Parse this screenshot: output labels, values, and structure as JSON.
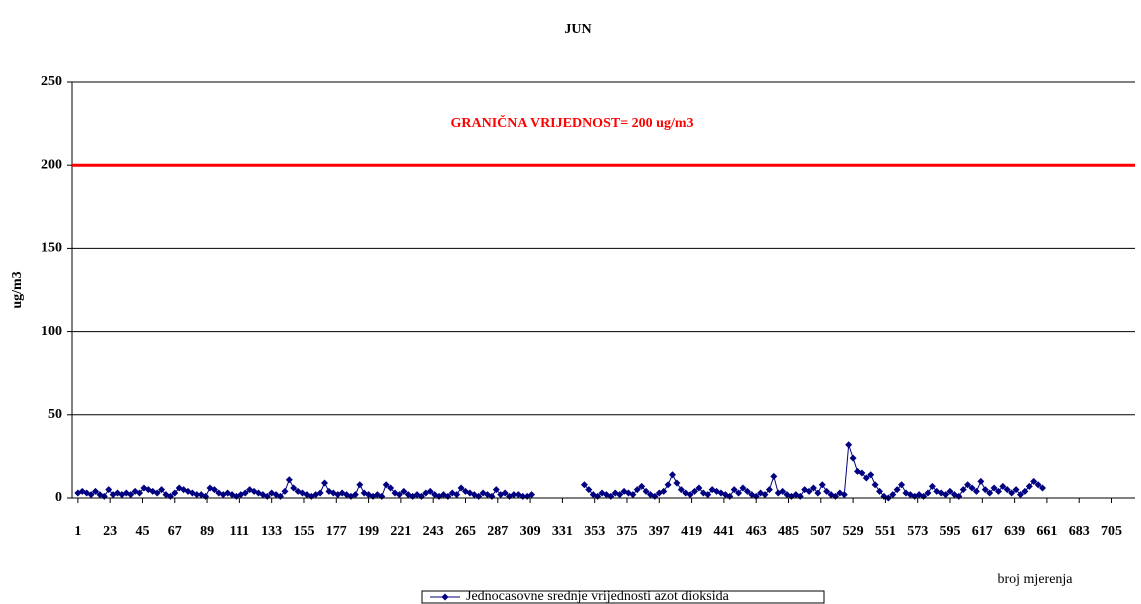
{
  "chart_data": {
    "type": "line",
    "title": "JUN",
    "y_label": "ug/m3",
    "x_label": "broj mjerenja",
    "threshold": {
      "value": 200,
      "label": "GRANIČNA VRIJEDNOST= 200 ug/m3",
      "color": "#ff0000"
    },
    "xlim": [
      -3,
      721
    ],
    "xticks": [
      1,
      23,
      45,
      67,
      89,
      111,
      133,
      155,
      177,
      199,
      221,
      243,
      265,
      287,
      309,
      331,
      353,
      375,
      397,
      419,
      441,
      463,
      485,
      507,
      529,
      551,
      573,
      595,
      617,
      639,
      661,
      683,
      705
    ],
    "ylim": [
      0,
      250
    ],
    "yticks": [
      0,
      50,
      100,
      150,
      200,
      250
    ],
    "grid": true,
    "x": [
      1,
      4,
      7,
      10,
      13,
      16,
      19,
      22,
      25,
      28,
      31,
      34,
      37,
      40,
      43,
      46,
      49,
      52,
      55,
      58,
      61,
      64,
      67,
      70,
      73,
      76,
      79,
      82,
      85,
      88,
      91,
      94,
      97,
      100,
      103,
      106,
      109,
      112,
      115,
      118,
      121,
      124,
      127,
      130,
      133,
      136,
      139,
      142,
      145,
      148,
      151,
      154,
      157,
      160,
      163,
      166,
      169,
      172,
      175,
      178,
      181,
      184,
      187,
      190,
      193,
      196,
      199,
      202,
      205,
      208,
      211,
      214,
      217,
      220,
      223,
      226,
      229,
      232,
      235,
      238,
      241,
      244,
      247,
      250,
      253,
      256,
      259,
      262,
      265,
      268,
      271,
      274,
      277,
      280,
      283,
      286,
      289,
      292,
      295,
      298,
      301,
      304,
      307,
      310,
      328,
      346,
      349,
      352,
      355,
      358,
      361,
      364,
      367,
      370,
      373,
      376,
      379,
      382,
      385,
      388,
      391,
      394,
      397,
      400,
      403,
      406,
      409,
      412,
      415,
      418,
      421,
      424,
      427,
      430,
      433,
      436,
      439,
      442,
      445,
      448,
      451,
      454,
      457,
      460,
      463,
      466,
      469,
      472,
      475,
      478,
      481,
      484,
      487,
      490,
      493,
      496,
      499,
      502,
      505,
      508,
      511,
      514,
      517,
      520,
      523,
      526,
      529,
      532,
      535,
      538,
      541,
      544,
      547,
      550,
      553,
      556,
      559,
      562,
      565,
      568,
      571,
      574,
      577,
      580,
      583,
      586,
      589,
      592,
      595,
      598,
      601,
      604,
      607,
      610,
      613,
      616,
      619,
      622,
      625,
      628,
      631,
      634,
      637,
      640,
      643,
      646,
      649,
      652,
      655,
      658
    ],
    "series": [
      {
        "name": "Jednocasovne srednje vrijednosti azot dioksida",
        "color": "#000080",
        "values": [
          3,
          4,
          3,
          2,
          4,
          2,
          1,
          5,
          2,
          3,
          2,
          3,
          2,
          4,
          3,
          6,
          5,
          4,
          3,
          5,
          2,
          1,
          3,
          6,
          5,
          4,
          3,
          2,
          2,
          1,
          6,
          5,
          3,
          2,
          3,
          2,
          1,
          2,
          3,
          5,
          4,
          3,
          2,
          1,
          3,
          2,
          1,
          4,
          11,
          6,
          4,
          3,
          2,
          1,
          2,
          3,
          9,
          4,
          3,
          2,
          3,
          2,
          1,
          2,
          8,
          3,
          2,
          1,
          2,
          1,
          8,
          6,
          3,
          2,
          4,
          2,
          1,
          2,
          1,
          3,
          4,
          2,
          1,
          2,
          1,
          3,
          2,
          6,
          4,
          3,
          2,
          1,
          3,
          2,
          1,
          5,
          2,
          3,
          1,
          2,
          2,
          1,
          1,
          2,
          null,
          8,
          5,
          2,
          1,
          3,
          2,
          1,
          3,
          2,
          4,
          3,
          2,
          5,
          7,
          4,
          2,
          1,
          3,
          4,
          8,
          14,
          9,
          5,
          3,
          2,
          4,
          6,
          3,
          2,
          5,
          4,
          3,
          2,
          1,
          5,
          3,
          6,
          4,
          2,
          1,
          3,
          2,
          5,
          13,
          3,
          4,
          2,
          1,
          2,
          1,
          5,
          4,
          6,
          3,
          8,
          4,
          2,
          1,
          3,
          2,
          32,
          24,
          16,
          15,
          12,
          14,
          8,
          4,
          1,
          0,
          2,
          5,
          8,
          3,
          2,
          1,
          2,
          1,
          3,
          7,
          4,
          3,
          2,
          4,
          2,
          1,
          5,
          8,
          6,
          4,
          10,
          5,
          3,
          6,
          4,
          7,
          5,
          3,
          5,
          2,
          4,
          7,
          10,
          8,
          6
        ]
      }
    ],
    "legend": "bottom"
  }
}
